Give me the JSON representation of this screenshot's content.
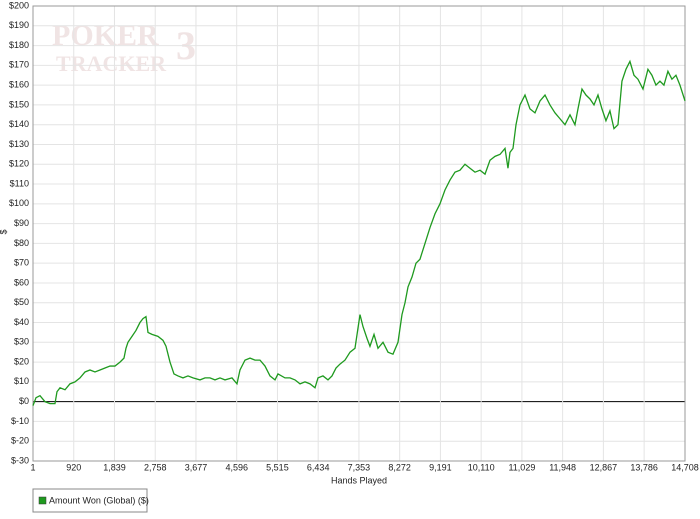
{
  "chart_data": {
    "type": "line",
    "logo": {
      "line1": "POKER",
      "line2": "TRACKER",
      "mark": "3"
    },
    "x_label": "Hands Played",
    "y_label": "$",
    "xlim": [
      1,
      14708
    ],
    "xticks": [
      1,
      {
        "value": 920,
        "label": "920"
      },
      {
        "value": 1839,
        "label": "1,839"
      },
      {
        "value": 2758,
        "label": "2,758"
      },
      {
        "value": 3677,
        "label": "3,677"
      },
      {
        "value": 4596,
        "label": "4,596"
      },
      {
        "value": 5515,
        "label": "5,515"
      },
      {
        "value": 6434,
        "label": "6,434"
      },
      {
        "value": 7353,
        "label": "7,353"
      },
      {
        "value": 8272,
        "label": "8,272"
      },
      {
        "value": 9191,
        "label": "9,191"
      },
      {
        "value": 10110,
        "label": "10,110"
      },
      {
        "value": 11029,
        "label": "11,029"
      },
      {
        "value": 11948,
        "label": "11,948"
      },
      {
        "value": 12867,
        "label": "12,867"
      },
      {
        "value": 13786,
        "label": "13,786"
      },
      {
        "value": 14708,
        "label": "14,708"
      }
    ],
    "ylim": [
      -30,
      200
    ],
    "yticks": [
      {
        "value": -30,
        "label": "$-30"
      },
      {
        "value": -20,
        "label": "$-20"
      },
      {
        "value": -10,
        "label": "$-10"
      },
      {
        "value": 0,
        "label": "$0"
      },
      {
        "value": 10,
        "label": "$10"
      },
      {
        "value": 20,
        "label": "$20"
      },
      {
        "value": 30,
        "label": "$30"
      },
      {
        "value": 40,
        "label": "$40"
      },
      {
        "value": 50,
        "label": "$50"
      },
      {
        "value": 60,
        "label": "$60"
      },
      {
        "value": 70,
        "label": "$70"
      },
      {
        "value": 80,
        "label": "$80"
      },
      {
        "value": 90,
        "label": "$90"
      },
      {
        "value": 100,
        "label": "$100"
      },
      {
        "value": 110,
        "label": "$110"
      },
      {
        "value": 120,
        "label": "$120"
      },
      {
        "value": 130,
        "label": "$130"
      },
      {
        "value": 140,
        "label": "$140"
      },
      {
        "value": 150,
        "label": "$150"
      },
      {
        "value": 160,
        "label": "$160"
      },
      {
        "value": 170,
        "label": "$170"
      },
      {
        "value": 180,
        "label": "$180"
      },
      {
        "value": 190,
        "label": "$190"
      },
      {
        "value": 200,
        "label": "$200"
      }
    ],
    "grid": true,
    "legend": "bottom-left",
    "x": [
      1,
      69,
      159,
      272,
      384,
      497,
      542,
      610,
      723,
      835,
      948,
      1061,
      1174,
      1286,
      1399,
      1512,
      1625,
      1738,
      1850,
      1963,
      2053,
      2098,
      2143,
      2234,
      2324,
      2414,
      2482,
      2549,
      2595,
      2685,
      2820,
      2933,
      3001,
      3091,
      3181,
      3272,
      3384,
      3497,
      3610,
      3768,
      3881,
      3993,
      4106,
      4219,
      4332,
      4490,
      4602,
      4670,
      4783,
      4896,
      5008,
      5121,
      5234,
      5347,
      5460,
      5527,
      5685,
      5798,
      5911,
      6024,
      6136,
      6249,
      6362,
      6430,
      6542,
      6655,
      6745,
      6836,
      6926,
      7039,
      7152,
      7264,
      7377,
      7444,
      7535,
      7602,
      7693,
      7783,
      7896,
      8009,
      8121,
      8234,
      8324,
      8392,
      8460,
      8550,
      8640,
      8730,
      8843,
      8956,
      9069,
      9181,
      9294,
      9407,
      9520,
      9633,
      9745,
      9858,
      9971,
      10084,
      10197,
      10309,
      10422,
      10535,
      10648,
      10715,
      10760,
      10828,
      10896,
      10986,
      11099,
      11211,
      11324,
      11437,
      11550,
      11662,
      11775,
      11888,
      12001,
      12114,
      12226,
      12294,
      12384,
      12474,
      12565,
      12655,
      12745,
      12835,
      12925,
      13015,
      13106,
      13196,
      13286,
      13376,
      13466,
      13557,
      13647,
      13760,
      13872,
      13962,
      14053,
      14143,
      14233,
      14323,
      14413,
      14504,
      14594,
      14708
    ],
    "series": [
      {
        "name": "Amount Won (Global) ($)",
        "color": "#1f9a1f",
        "values": [
          -2,
          2,
          3,
          0,
          -1,
          -1,
          5,
          7,
          6,
          9,
          10,
          12,
          15,
          16,
          15,
          16,
          17,
          18,
          18,
          20,
          22,
          27,
          30,
          33,
          36,
          40,
          42,
          43,
          35,
          34,
          33,
          31,
          28,
          20,
          14,
          13,
          12,
          13,
          12,
          11,
          12,
          12,
          11,
          12,
          11,
          12,
          9,
          16,
          21,
          22,
          21,
          21,
          18,
          13,
          11,
          14,
          12,
          12,
          11,
          9,
          10,
          9,
          7,
          12,
          13,
          11,
          13,
          17,
          19,
          21,
          25,
          27,
          44,
          38,
          32,
          28,
          34,
          27,
          30,
          25,
          24,
          30,
          44,
          50,
          58,
          63,
          70,
          72,
          80,
          88,
          95,
          100,
          107,
          112,
          116,
          117,
          120,
          118,
          116,
          117,
          115,
          122,
          124,
          125,
          128,
          118,
          126,
          128,
          140,
          150,
          155,
          148,
          146,
          152,
          155,
          150,
          146,
          143,
          140,
          145,
          140,
          148,
          158,
          155,
          153,
          150,
          155,
          148,
          142,
          147,
          138,
          140,
          162,
          168,
          172,
          165,
          163,
          158,
          168,
          165,
          160,
          162,
          160,
          167,
          163,
          165,
          160,
          152
        ]
      }
    ]
  }
}
